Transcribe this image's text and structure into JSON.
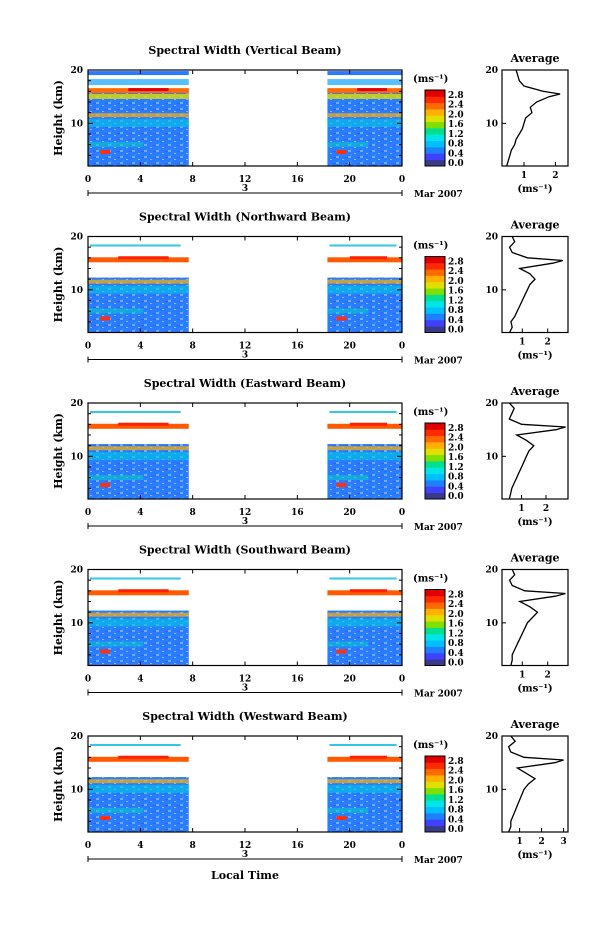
{
  "chart_data": {
    "type": "heatmap",
    "x_axis_label": "Local Time",
    "x_ticks": [
      "0",
      "4",
      "8",
      "12",
      "16",
      "20",
      "0"
    ],
    "date_label": "3",
    "month_label": "Mar 2007",
    "y_axis_label": "Height (km)",
    "y_ticks": [
      "10",
      "20"
    ],
    "ylim": [
      2,
      20
    ],
    "xlim_hours": [
      0,
      24
    ],
    "data_gap_hours": [
      7.7,
      18.3
    ],
    "colorbar": {
      "unit": "(ms⁻¹)",
      "ticks": [
        "2.8",
        "2.4",
        "2.0",
        "1.6",
        "1.2",
        "0.8",
        "0.4",
        "0.0"
      ],
      "range": [
        0,
        3.0
      ],
      "colors": [
        "#3a3a8a",
        "#4040ff",
        "#1e7fff",
        "#00bfff",
        "#00e5e5",
        "#00e090",
        "#7fe000",
        "#e0e000",
        "#ffb000",
        "#ff6a00",
        "#ff2a00",
        "#e00000"
      ]
    },
    "average_panel": {
      "title": "Average",
      "xlabel": "(ms⁻¹)",
      "y_ticks": [
        "10",
        "20"
      ]
    },
    "panels": [
      {
        "title": "Spectral Width (Vertical Beam)",
        "avg_ticks": [
          "1",
          "2"
        ],
        "avg_xlim": [
          0.3,
          2.4
        ],
        "profile": [
          [
            2,
            0.45
          ],
          [
            3,
            0.5
          ],
          [
            4,
            0.55
          ],
          [
            5,
            0.6
          ],
          [
            6,
            0.7
          ],
          [
            7,
            0.75
          ],
          [
            8,
            0.85
          ],
          [
            9,
            0.95
          ],
          [
            10,
            1.0
          ],
          [
            11,
            1.05
          ],
          [
            12,
            1.25
          ],
          [
            13,
            1.2
          ],
          [
            14,
            1.4
          ],
          [
            15,
            1.8
          ],
          [
            15.5,
            2.15
          ],
          [
            16,
            1.6
          ],
          [
            17,
            1.0
          ],
          [
            18,
            0.85
          ],
          [
            19,
            0.8
          ],
          [
            20,
            0.75
          ]
        ]
      },
      {
        "title": "Spectral Width (Northward Beam)",
        "avg_ticks": [
          "1",
          "2"
        ],
        "avg_xlim": [
          0.2,
          2.8
        ],
        "profile": [
          [
            2,
            0.5
          ],
          [
            3,
            0.6
          ],
          [
            4,
            0.55
          ],
          [
            5,
            0.7
          ],
          [
            6,
            0.8
          ],
          [
            7,
            0.9
          ],
          [
            8,
            1.0
          ],
          [
            9,
            1.1
          ],
          [
            10,
            1.2
          ],
          [
            11,
            1.3
          ],
          [
            12,
            1.5
          ],
          [
            13,
            1.3
          ],
          [
            14,
            0.9
          ],
          [
            15,
            2.2
          ],
          [
            15.5,
            2.6
          ],
          [
            16,
            1.2
          ],
          [
            17,
            0.6
          ],
          [
            18,
            0.5
          ],
          [
            19,
            0.7
          ],
          [
            20,
            0.6
          ]
        ]
      },
      {
        "title": "Spectral Width (Eastward Beam)",
        "avg_ticks": [
          "1",
          "2"
        ],
        "avg_xlim": [
          0.2,
          2.9
        ],
        "profile": [
          [
            2,
            0.5
          ],
          [
            3,
            0.55
          ],
          [
            4,
            0.6
          ],
          [
            5,
            0.7
          ],
          [
            6,
            0.8
          ],
          [
            7,
            0.9
          ],
          [
            8,
            1.0
          ],
          [
            9,
            1.1
          ],
          [
            10,
            1.2
          ],
          [
            11,
            1.3
          ],
          [
            12,
            1.5
          ],
          [
            13,
            1.2
          ],
          [
            14,
            0.8
          ],
          [
            15,
            2.4
          ],
          [
            15.5,
            2.8
          ],
          [
            16,
            1.0
          ],
          [
            17,
            0.5
          ],
          [
            18,
            0.6
          ],
          [
            19,
            0.7
          ],
          [
            20,
            0.5
          ]
        ]
      },
      {
        "title": "Spectral Width (Southward Beam)",
        "avg_ticks": [
          "1",
          "2"
        ],
        "avg_xlim": [
          0.2,
          2.8
        ],
        "profile": [
          [
            2,
            0.55
          ],
          [
            3,
            0.6
          ],
          [
            4,
            0.6
          ],
          [
            5,
            0.7
          ],
          [
            6,
            0.8
          ],
          [
            7,
            0.9
          ],
          [
            8,
            1.0
          ],
          [
            9,
            1.1
          ],
          [
            10,
            1.2
          ],
          [
            11,
            1.4
          ],
          [
            12,
            1.6
          ],
          [
            13,
            1.3
          ],
          [
            14,
            0.9
          ],
          [
            15,
            2.3
          ],
          [
            15.5,
            2.7
          ],
          [
            16,
            1.1
          ],
          [
            17,
            0.6
          ],
          [
            18,
            0.5
          ],
          [
            19,
            0.7
          ],
          [
            20,
            0.6
          ]
        ]
      },
      {
        "title": "Spectral Width (Westward Beam)",
        "avg_ticks": [
          "1",
          "2",
          "3"
        ],
        "avg_xlim": [
          0.2,
          3.2
        ],
        "profile": [
          [
            2,
            0.5
          ],
          [
            3,
            0.6
          ],
          [
            4,
            0.6
          ],
          [
            5,
            0.7
          ],
          [
            6,
            0.8
          ],
          [
            7,
            0.9
          ],
          [
            8,
            1.0
          ],
          [
            9,
            1.1
          ],
          [
            10,
            1.2
          ],
          [
            11,
            1.4
          ],
          [
            12,
            1.7
          ],
          [
            13,
            1.3
          ],
          [
            14,
            0.9
          ],
          [
            15,
            2.6
          ],
          [
            15.5,
            3.0
          ],
          [
            16,
            1.2
          ],
          [
            17,
            0.6
          ],
          [
            18,
            0.5
          ],
          [
            19,
            0.8
          ],
          [
            20,
            0.6
          ]
        ]
      }
    ]
  }
}
